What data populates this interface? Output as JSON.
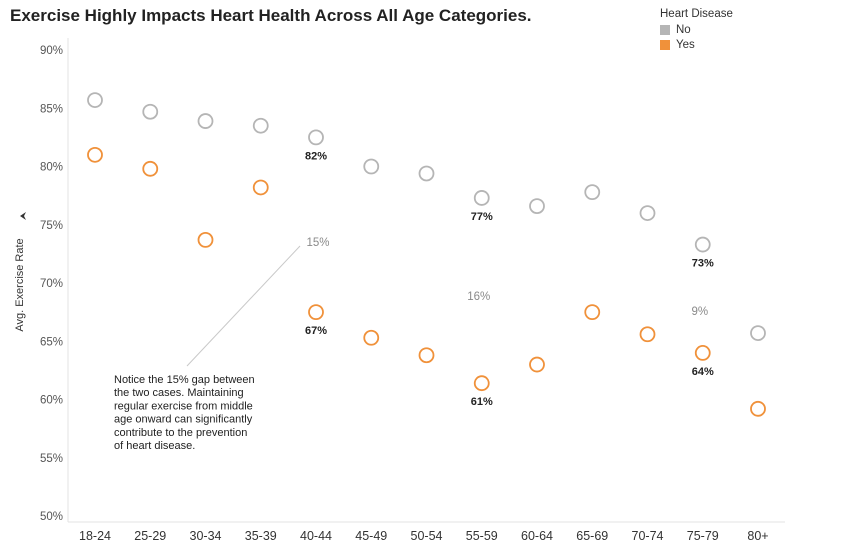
{
  "chart_data": {
    "type": "scatter",
    "title": "Exercise Highly Impacts Heart Health Across All Age Categories.",
    "ylabel": "Avg. Exercise Rate",
    "ylim": [
      50,
      90
    ],
    "yticks": [
      50,
      55,
      60,
      65,
      70,
      75,
      80,
      85,
      90
    ],
    "ytick_labels": [
      "50%",
      "55%",
      "60%",
      "65%",
      "70%",
      "75%",
      "80%",
      "85%",
      "90%"
    ],
    "categories": [
      "18-24",
      "25-29",
      "30-34",
      "35-39",
      "40-44",
      "45-49",
      "50-54",
      "55-59",
      "60-64",
      "65-69",
      "70-74",
      "75-79",
      "80+"
    ],
    "legend": {
      "title": "Heart Disease",
      "position": "top-right"
    },
    "series": [
      {
        "name": "No",
        "color": "#b5b5b5",
        "values": [
          85.7,
          84.7,
          83.9,
          83.5,
          82.5,
          80.0,
          79.4,
          77.3,
          76.6,
          77.8,
          76.0,
          73.3,
          65.7
        ]
      },
      {
        "name": "Yes",
        "color": "#f0913a",
        "values": [
          81.0,
          79.8,
          73.7,
          78.2,
          67.5,
          65.3,
          63.8,
          61.4,
          63.0,
          67.5,
          65.6,
          64.0,
          59.2
        ]
      }
    ],
    "data_labels": [
      {
        "category": "40-44",
        "series": "No",
        "text": "82%"
      },
      {
        "category": "55-59",
        "series": "No",
        "text": "77%"
      },
      {
        "category": "75-79",
        "series": "No",
        "text": "73%"
      },
      {
        "category": "40-44",
        "series": "Yes",
        "text": "67%"
      },
      {
        "category": "55-59",
        "series": "Yes",
        "text": "61%"
      },
      {
        "category": "75-79",
        "series": "Yes",
        "text": "64%"
      }
    ],
    "gap_labels": [
      {
        "category": "40-44",
        "text": "15%"
      },
      {
        "category": "55-59",
        "text": "16%"
      },
      {
        "category": "75-79",
        "text": "9%"
      }
    ],
    "annotation": {
      "lines": [
        "Notice the 15% gap between",
        "the two cases. Maintaining",
        "regular exercise from middle",
        "age onward can significantly",
        "contribute to the prevention",
        "of heart disease."
      ]
    }
  }
}
